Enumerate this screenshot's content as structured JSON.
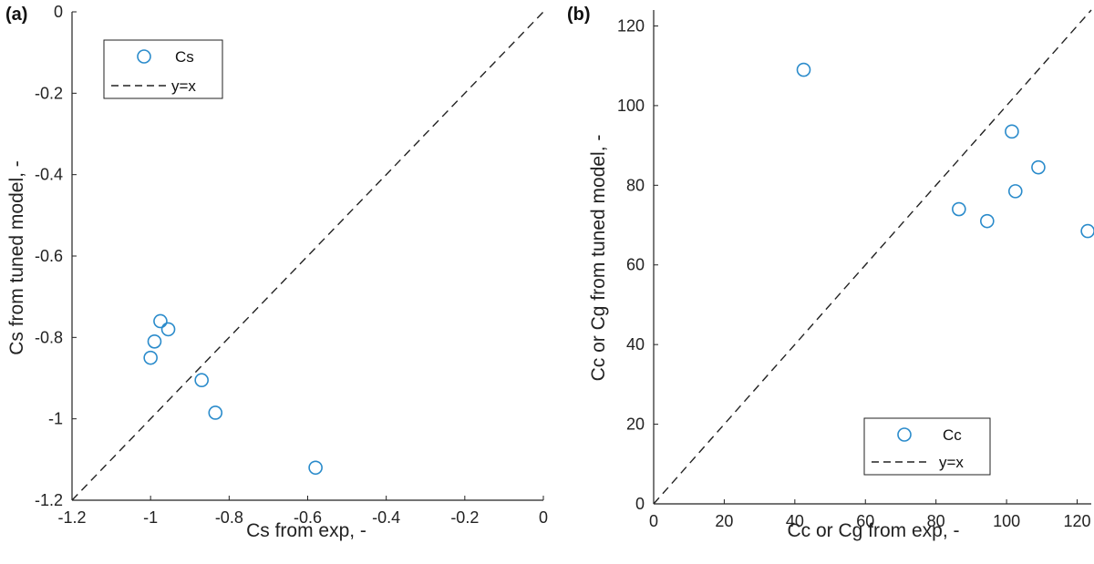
{
  "chart_data": [
    {
      "panel_label": "(a)",
      "type": "scatter",
      "xlabel": "Cs from exp, -",
      "ylabel": "Cs from tuned model, -",
      "xlim": [
        -1.2,
        0
      ],
      "ylim": [
        -1.2,
        0
      ],
      "xticks": [
        -1.2,
        -1,
        -0.8,
        -0.6,
        -0.4,
        -0.2,
        0
      ],
      "yticks": [
        -1.2,
        -1,
        -0.8,
        -0.6,
        -0.4,
        -0.2,
        0
      ],
      "xtick_labels": [
        "-1.2",
        "-1",
        "-0.8",
        "-0.6",
        "-0.4",
        "-0.2",
        "0"
      ],
      "ytick_labels": [
        "-1.2",
        "-1",
        "-0.8",
        "-0.6",
        "-0.4",
        "-0.2",
        "0"
      ],
      "series": [
        {
          "name": "Cs",
          "marker": "open-circle",
          "color": "#2a8bcb",
          "x": [
            -1.0,
            -0.99,
            -0.975,
            -0.955,
            -0.87,
            -0.835,
            -0.58
          ],
          "y": [
            -0.85,
            -0.81,
            -0.76,
            -0.78,
            -0.905,
            -0.985,
            -1.12
          ]
        }
      ],
      "reference_line": {
        "name": "y=x",
        "style": "dashed",
        "color": "#222222"
      },
      "legend": {
        "placement": "top-left",
        "entries": [
          "Cs",
          "y=x"
        ]
      },
      "grid": false
    },
    {
      "panel_label": "(b)",
      "type": "scatter",
      "xlabel": "Cc or Cg from exp, -",
      "ylabel": "Cc or Cg from tuned model, -",
      "xlim": [
        0,
        124
      ],
      "ylim": [
        0,
        124
      ],
      "xticks": [
        0,
        20,
        40,
        60,
        80,
        100,
        120
      ],
      "yticks": [
        0,
        20,
        40,
        60,
        80,
        100,
        120
      ],
      "xtick_labels": [
        "0",
        "20",
        "40",
        "60",
        "80",
        "100",
        "120"
      ],
      "ytick_labels": [
        "0",
        "20",
        "40",
        "60",
        "80",
        "100",
        "120"
      ],
      "series": [
        {
          "name": "Cc",
          "marker": "open-circle",
          "color": "#2a8bcb",
          "x": [
            42.5,
            86.5,
            94.5,
            101.5,
            102.5,
            109,
            123
          ],
          "y": [
            109,
            74,
            71,
            93.5,
            78.5,
            84.5,
            68.5
          ]
        }
      ],
      "reference_line": {
        "name": "y=x",
        "style": "dashed",
        "color": "#222222"
      },
      "legend": {
        "placement": "bottom-right",
        "entries": [
          "Cc",
          "y=x"
        ]
      },
      "grid": false
    }
  ]
}
